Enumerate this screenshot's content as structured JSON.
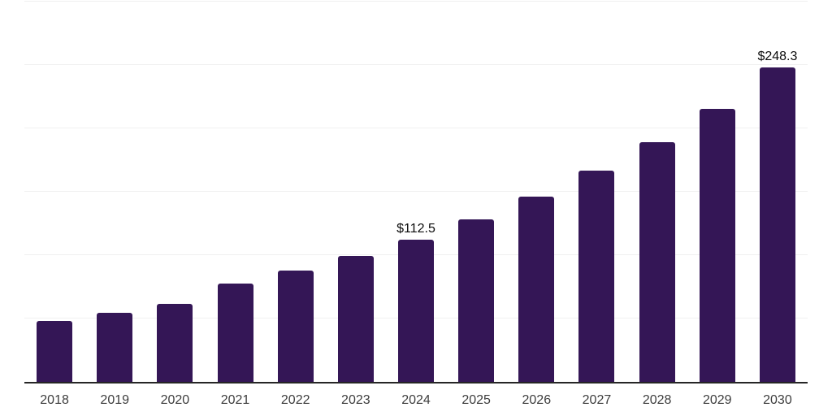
{
  "chart_data": {
    "type": "bar",
    "title": "",
    "xlabel": "",
    "ylabel": "",
    "categories": [
      "2018",
      "2019",
      "2020",
      "2021",
      "2022",
      "2023",
      "2024",
      "2025",
      "2026",
      "2027",
      "2028",
      "2029",
      "2030"
    ],
    "values": [
      48.1,
      54.8,
      61.3,
      77.4,
      88.0,
      99.5,
      112.5,
      128.3,
      146.0,
      166.5,
      189.0,
      215.5,
      248.3
    ],
    "data_labels": [
      null,
      null,
      null,
      null,
      null,
      null,
      "$112.5",
      null,
      null,
      null,
      null,
      null,
      "$248.3"
    ],
    "ylim": [
      0,
      300
    ],
    "grid_step": 50,
    "grid": "horizontal-only",
    "legend": "none",
    "y_tick_labels_visible": false,
    "bar_color": "#341656",
    "grid_color": "#f0f0f0",
    "axis_line_color": "#262626",
    "tick_label_color": "#3d3d3d",
    "data_label_color": "#0b0b0b",
    "background": "#ffffff"
  }
}
